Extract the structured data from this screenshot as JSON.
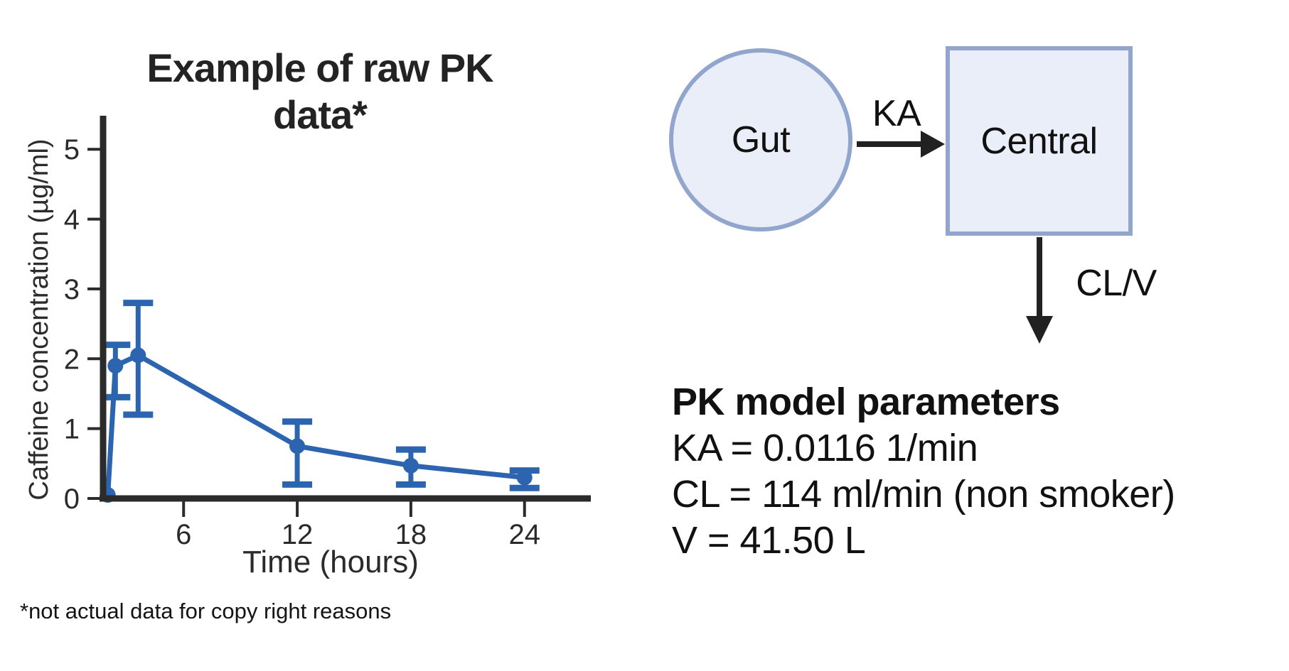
{
  "figure": {
    "footnote": "*not actual data for copy right reasons"
  },
  "chart_data": {
    "type": "line",
    "title": "Example of raw PK data*",
    "xlabel": "Time (hours)",
    "ylabel": "Caffeine concentration (µg/ml)",
    "x_ticks": [
      6,
      12,
      18,
      24
    ],
    "y_ticks": [
      0,
      1,
      2,
      3,
      4,
      5
    ],
    "xlim": [
      1.75,
      27.5
    ],
    "ylim": [
      0,
      5.48
    ],
    "grid": false,
    "legend_position": "none",
    "axis_color": "#2b2b2b",
    "series": [
      {
        "color": "#2d64b0",
        "marker": "circle",
        "points": [
          {
            "t": 2.0,
            "c": 0.05,
            "err_lo": null,
            "err_hi": null
          },
          {
            "t": 2.4,
            "c": 1.9,
            "err_lo": 1.45,
            "err_hi": 2.2
          },
          {
            "t": 3.6,
            "c": 2.05,
            "err_lo": 1.2,
            "err_hi": 2.8
          },
          {
            "t": 12,
            "c": 0.75,
            "err_lo": 0.2,
            "err_hi": 1.1
          },
          {
            "t": 18,
            "c": 0.47,
            "err_lo": 0.2,
            "err_hi": 0.7
          },
          {
            "t": 24,
            "c": 0.3,
            "err_lo": 0.15,
            "err_hi": 0.4
          }
        ]
      }
    ]
  },
  "diagram": {
    "gut_label": "Gut",
    "ka_label": "KA",
    "central_label": "Central",
    "clv_label": "CL/V",
    "fill_color": "#e9eef8",
    "stroke_color": "#92a5cd",
    "arrow_color": "#212121"
  },
  "parameters": {
    "title": "PK model parameters",
    "lines": [
      "KA = 0.0116 1/min",
      "CL = 114 ml/min (non smoker)",
      "V = 41.50 L"
    ]
  }
}
